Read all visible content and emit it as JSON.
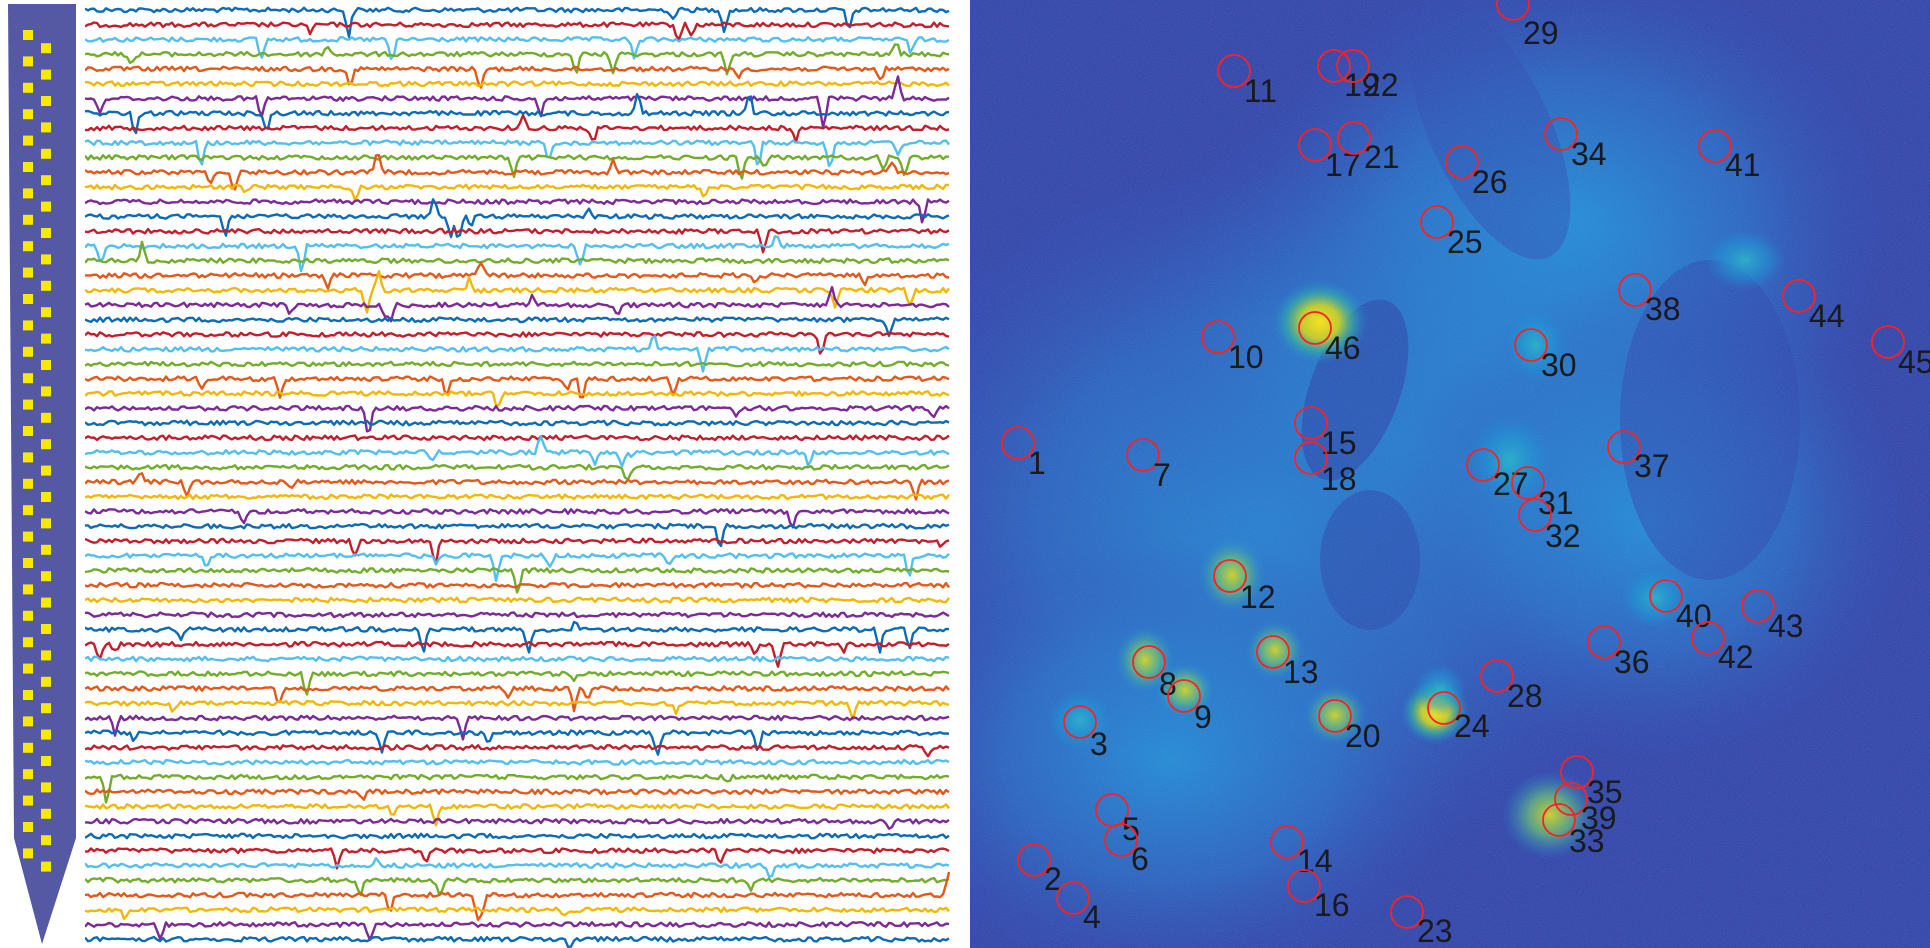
{
  "probe": {
    "shaft_color": "#5558a3",
    "site_color": "#f7ea00",
    "site_count": 64
  },
  "traces": {
    "channel_count": 64,
    "palette": [
      "#0d6bb5",
      "#c21e2c",
      "#52bfec",
      "#71ad2a",
      "#e2591a",
      "#f2b705",
      "#7b2a96"
    ]
  },
  "image": {
    "colormap": "parula",
    "roi_color": "#ff2020",
    "rois": [
      {
        "label": "1"
      },
      {
        "label": "2"
      },
      {
        "label": "3"
      },
      {
        "label": "4"
      },
      {
        "label": "5"
      },
      {
        "label": "6"
      },
      {
        "label": "7"
      },
      {
        "label": "8"
      },
      {
        "label": "9"
      },
      {
        "label": "10"
      },
      {
        "label": "11"
      },
      {
        "label": "19"
      },
      {
        "label": "22"
      },
      {
        "label": "17"
      },
      {
        "label": "21"
      },
      {
        "label": "26"
      },
      {
        "label": "25"
      },
      {
        "label": "29"
      },
      {
        "label": "34"
      },
      {
        "label": "41"
      },
      {
        "label": "38"
      },
      {
        "label": "44"
      },
      {
        "label": "45"
      },
      {
        "label": "46"
      },
      {
        "label": "30"
      },
      {
        "label": "15"
      },
      {
        "label": "18"
      },
      {
        "label": "27"
      },
      {
        "label": "31"
      },
      {
        "label": "32"
      },
      {
        "label": "37"
      },
      {
        "label": "12"
      },
      {
        "label": "13"
      },
      {
        "label": "20"
      },
      {
        "label": "24"
      },
      {
        "label": "28"
      },
      {
        "label": "36"
      },
      {
        "label": "40"
      },
      {
        "label": "42"
      },
      {
        "label": "43"
      },
      {
        "label": "14"
      },
      {
        "label": "16"
      },
      {
        "label": "23"
      },
      {
        "label": "35"
      },
      {
        "label": "39"
      },
      {
        "label": "33"
      }
    ]
  }
}
